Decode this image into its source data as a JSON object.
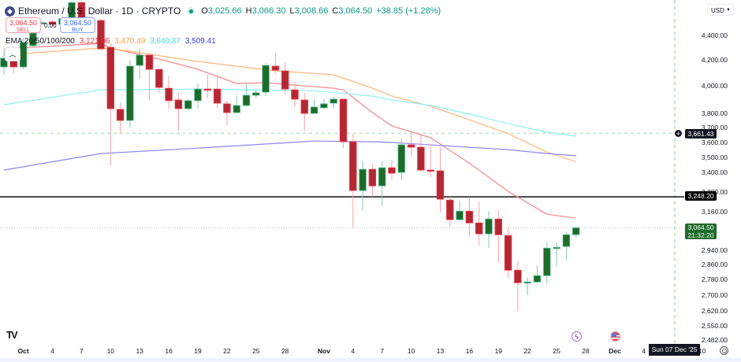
{
  "header": {
    "symbol_title": "Ethereum / U.S. Dollar · 1D · CRYPTO",
    "open_label": "O",
    "open": "3,025.66",
    "high_label": "H",
    "high": "3,066.30",
    "low_label": "L",
    "low": "3,008.66",
    "close_label": "C",
    "close": "3,064.50",
    "change": "+38.85 (+1.28%)"
  },
  "trade": {
    "sell_price": "3,064.50",
    "sell_label": "SELL",
    "buy_price": "3,064.50",
    "buy_label": "BUY",
    "spread": "0.00"
  },
  "ema_legend": {
    "label": "EMA 20/50/100/200",
    "values": [
      "3,121.06",
      "3,470.49",
      "3,640.87",
      "3,509.41"
    ]
  },
  "currency": "USD",
  "price_labels": {
    "alert": "3,661.43",
    "line": "3,248.20",
    "current": "3,064.50",
    "countdown": "21:32:20"
  },
  "crosshair_date": "Sun 07 Dec '25",
  "colors": {
    "up": "#1e6b2a",
    "up_border": "#4fb892",
    "down": "#b22833",
    "down_border": "#f23645",
    "ema20": "#f4868c",
    "ema50": "#ffb77a",
    "ema100": "#8ff0f0",
    "ema200": "#8d86f0"
  },
  "chart_data": {
    "type": "candlestick",
    "title": "Ethereum / U.S. Dollar · 1D · CRYPTO",
    "scale": "log",
    "ylim": [
      2482,
      4400
    ],
    "start_date": "Sep 29",
    "candles": [
      [
        4147,
        4290,
        4086,
        4215
      ],
      [
        4215,
        4228,
        4098,
        4147
      ],
      [
        4147,
        4380,
        4128,
        4342
      ],
      [
        4316,
        4446,
        4303,
        4420
      ],
      [
        4500,
        4520,
        4480,
        4506
      ],
      [
        4513,
        4530,
        4480,
        4493
      ],
      [
        4493,
        4560,
        4470,
        4540
      ],
      [
        4532,
        4695,
        4520,
        4680
      ],
      [
        4680,
        4700,
        4513,
        4532
      ],
      [
        4532,
        4560,
        4440,
        4460
      ],
      [
        4525,
        4539,
        4277,
        4290
      ],
      [
        4303,
        4335,
        3446,
        3834
      ],
      [
        3829,
        3880,
        3657,
        3750
      ],
      [
        3750,
        4197,
        3700,
        4153
      ],
      [
        4159,
        4290,
        4056,
        4240
      ],
      [
        4240,
        4245,
        3892,
        4128
      ],
      [
        4128,
        4128,
        3950,
        3990
      ],
      [
        3984,
        4080,
        3834,
        3892
      ],
      [
        3897,
        3950,
        3679,
        3834
      ],
      [
        3834,
        3903,
        3823,
        3892
      ],
      [
        3892,
        4020,
        3834,
        3978
      ],
      [
        3978,
        4086,
        3909,
        3972
      ],
      [
        3978,
        4086,
        3840,
        3874
      ],
      [
        3869,
        3892,
        3716,
        3806
      ],
      [
        3806,
        3932,
        3795,
        3857
      ],
      [
        3857,
        4014,
        3852,
        3932
      ],
      [
        3932,
        3972,
        3915,
        3950
      ],
      [
        3955,
        4178,
        3926,
        4159
      ],
      [
        4153,
        4253,
        4098,
        4122
      ],
      [
        4116,
        4178,
        3938,
        3978
      ],
      [
        3972,
        4032,
        3846,
        3903
      ],
      [
        3897,
        3950,
        3679,
        3800
      ],
      [
        3800,
        3903,
        3800,
        3846
      ],
      [
        3840,
        3903,
        3834,
        3869
      ],
      [
        3874,
        3920,
        3834,
        3903
      ],
      [
        3903,
        3903,
        3560,
        3603
      ],
      [
        3603,
        3657,
        3061,
        3287
      ],
      [
        3287,
        3477,
        3167,
        3421
      ],
      [
        3421,
        3456,
        3248,
        3316
      ],
      [
        3316,
        3472,
        3191,
        3431
      ],
      [
        3431,
        3482,
        3351,
        3396
      ],
      [
        3401,
        3619,
        3356,
        3582
      ],
      [
        3582,
        3657,
        3508,
        3566
      ],
      [
        3566,
        3646,
        3406,
        3416
      ],
      [
        3416,
        3587,
        3371,
        3411
      ],
      [
        3411,
        3566,
        3153,
        3234
      ],
      [
        3229,
        3248,
        3070,
        3112
      ],
      [
        3112,
        3224,
        3107,
        3162
      ],
      [
        3162,
        3248,
        3016,
        3093
      ],
      [
        3093,
        3220,
        2963,
        3030
      ],
      [
        3030,
        3162,
        2950,
        3116
      ],
      [
        3116,
        3167,
        2872,
        3025
      ],
      [
        3020,
        3061,
        2789,
        2830
      ],
      [
        2830,
        2880,
        2620,
        2764
      ],
      [
        2764,
        2793,
        2699,
        2768
      ],
      [
        2768,
        2855,
        2760,
        2801
      ],
      [
        2801,
        2981,
        2760,
        2950
      ],
      [
        2950,
        2981,
        2850,
        2954
      ],
      [
        2959,
        3043,
        2885,
        3025
      ],
      [
        3025.66,
        3066.3,
        3008.66,
        3064.5
      ]
    ],
    "ema": [
      {
        "name": "EMA 20",
        "points": [
          [
            0,
            4290
          ],
          [
            10,
            4335
          ],
          [
            11,
            4297
          ],
          [
            16,
            4209
          ],
          [
            20,
            4128
          ],
          [
            24,
            4020
          ],
          [
            27,
            4026
          ],
          [
            30,
            4008
          ],
          [
            34,
            3984
          ],
          [
            35,
            3972
          ],
          [
            38,
            3806
          ],
          [
            40,
            3711
          ],
          [
            44,
            3630
          ],
          [
            48,
            3461
          ],
          [
            52,
            3282
          ],
          [
            56,
            3144
          ],
          [
            59,
            3121.06
          ]
        ]
      },
      {
        "name": "EMA 50",
        "points": [
          [
            0,
            4240
          ],
          [
            10,
            4297
          ],
          [
            13,
            4272
          ],
          [
            20,
            4190
          ],
          [
            28,
            4116
          ],
          [
            34,
            4086
          ],
          [
            38,
            3984
          ],
          [
            40,
            3926
          ],
          [
            44,
            3852
          ],
          [
            48,
            3755
          ],
          [
            52,
            3657
          ],
          [
            56,
            3534
          ],
          [
            59,
            3470.49
          ]
        ]
      },
      {
        "name": "EMA 100",
        "points": [
          [
            0,
            3863
          ],
          [
            10,
            3972
          ],
          [
            20,
            3978
          ],
          [
            32,
            3966
          ],
          [
            38,
            3926
          ],
          [
            40,
            3897
          ],
          [
            44,
            3857
          ],
          [
            48,
            3795
          ],
          [
            52,
            3727
          ],
          [
            56,
            3668
          ],
          [
            59,
            3640.87
          ]
        ]
      },
      {
        "name": "EMA 200",
        "points": [
          [
            0,
            3416
          ],
          [
            10,
            3524
          ],
          [
            20,
            3560
          ],
          [
            32,
            3608
          ],
          [
            38,
            3603
          ],
          [
            40,
            3598
          ],
          [
            48,
            3566
          ],
          [
            52,
            3550
          ],
          [
            56,
            3524
          ],
          [
            59,
            3509.41
          ]
        ]
      }
    ],
    "hlines": {
      "horizontal_line": 3248.2,
      "alert": 3661.43,
      "current": 3064.5
    },
    "yticks": [
      4400,
      4200,
      4000,
      3800,
      3700,
      3600,
      3500,
      3400,
      3280,
      3160,
      2940,
      2860,
      2780,
      2700,
      2620,
      2550,
      2482
    ],
    "ytick_labels": [
      "4,400.00",
      "4,200.00",
      "4,000.00",
      "3,800.00",
      "3,700.00",
      "3,600.00",
      "3,500.00",
      "3,400.00",
      "3,280.00",
      "3,160.00",
      "2,940.00",
      "2,860.00",
      "2,780.00",
      "2,700.00",
      "2,620.00",
      "2,550.00",
      "2,482.00"
    ],
    "xticks": [
      {
        "i": 2,
        "label": "Oct",
        "major": true
      },
      {
        "i": 5,
        "label": "4"
      },
      {
        "i": 8,
        "label": "7"
      },
      {
        "i": 11,
        "label": "10"
      },
      {
        "i": 14,
        "label": "13"
      },
      {
        "i": 17,
        "label": "16"
      },
      {
        "i": 20,
        "label": "19"
      },
      {
        "i": 23,
        "label": "22"
      },
      {
        "i": 26,
        "label": "25"
      },
      {
        "i": 29,
        "label": "28"
      },
      {
        "i": 33,
        "label": "Nov",
        "major": true
      },
      {
        "i": 36,
        "label": "4"
      },
      {
        "i": 39,
        "label": "7"
      },
      {
        "i": 42,
        "label": "10"
      },
      {
        "i": 45,
        "label": "13"
      },
      {
        "i": 48,
        "label": "16"
      },
      {
        "i": 51,
        "label": "19"
      },
      {
        "i": 54,
        "label": "22"
      },
      {
        "i": 57,
        "label": "25"
      },
      {
        "i": 60,
        "label": "28"
      },
      {
        "i": 63,
        "label": "Dec",
        "major": true
      },
      {
        "i": 66,
        "label": "4"
      },
      {
        "i": 72,
        "label": "10"
      }
    ]
  }
}
